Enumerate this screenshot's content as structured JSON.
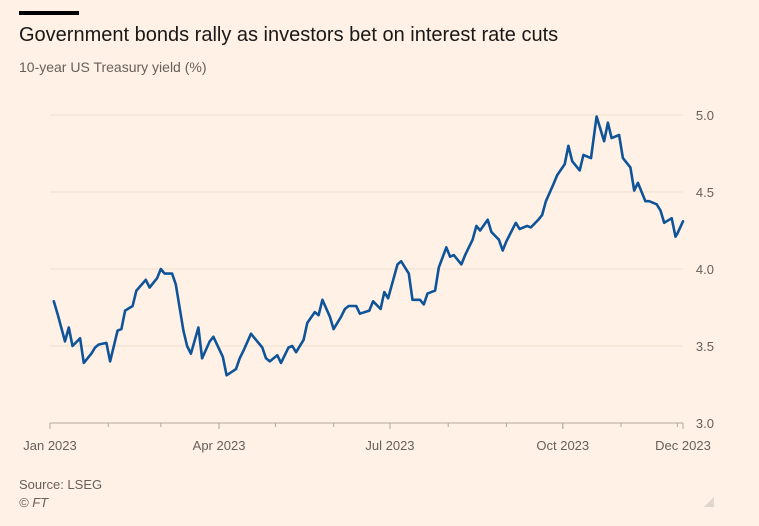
{
  "header": {
    "title": "Government bonds rally as investors bet on interest rate cuts",
    "subtitle": "10-year US Treasury yield (%)"
  },
  "footer": {
    "source": "Source: LSEG",
    "credit": "© FT"
  },
  "colors": {
    "background": "#FFF1E5",
    "line": "#0F5499",
    "gridline": "#F2DFCE",
    "text": "#66605C"
  },
  "icons": {
    "resize": "resize-handle-icon"
  },
  "chart_data": {
    "type": "line",
    "title": "Government bonds rally as investors bet on interest rate cuts",
    "subtitle": "10-year US Treasury yield (%)",
    "xlabel": "",
    "ylabel": "",
    "y_axis_position": "right",
    "grid": true,
    "ylim": [
      3.0,
      5.0
    ],
    "y_ticks": [
      3.0,
      3.5,
      4.0,
      4.5,
      5.0
    ],
    "y_tick_labels": [
      "3.0",
      "3.5",
      "4.0",
      "4.5",
      "5.0"
    ],
    "xlim": [
      "2023-01-01",
      "2023-12-04"
    ],
    "x_ticks": [
      {
        "date": "2023-01-01",
        "label": "Jan 2023"
      },
      {
        "date": "2023-04-01",
        "label": "Apr 2023"
      },
      {
        "date": "2023-07-01",
        "label": "Jul 2023"
      },
      {
        "date": "2023-10-01",
        "label": "Oct 2023"
      },
      {
        "date": "2023-12-04",
        "label": "Dec 2023"
      }
    ],
    "series": [
      {
        "color": "#0F5499",
        "x": [
          "2023-01-03",
          "2023-01-05",
          "2023-01-09",
          "2023-01-11",
          "2023-01-13",
          "2023-01-17",
          "2023-01-19",
          "2023-01-23",
          "2023-01-25",
          "2023-01-27",
          "2023-01-31",
          "2023-02-02",
          "2023-02-06",
          "2023-02-08",
          "2023-02-10",
          "2023-02-14",
          "2023-02-16",
          "2023-02-21",
          "2023-02-23",
          "2023-02-27",
          "2023-03-01",
          "2023-03-03",
          "2023-03-07",
          "2023-03-09",
          "2023-03-13",
          "2023-03-15",
          "2023-03-17",
          "2023-03-21",
          "2023-03-23",
          "2023-03-27",
          "2023-03-29",
          "2023-04-03",
          "2023-04-05",
          "2023-04-10",
          "2023-04-12",
          "2023-04-14",
          "2023-04-18",
          "2023-04-20",
          "2023-04-24",
          "2023-04-26",
          "2023-04-28",
          "2023-05-02",
          "2023-05-04",
          "2023-05-08",
          "2023-05-10",
          "2023-05-12",
          "2023-05-16",
          "2023-05-18",
          "2023-05-22",
          "2023-05-24",
          "2023-05-26",
          "2023-05-30",
          "2023-06-01",
          "2023-06-05",
          "2023-06-07",
          "2023-06-09",
          "2023-06-13",
          "2023-06-15",
          "2023-06-20",
          "2023-06-22",
          "2023-06-26",
          "2023-06-28",
          "2023-06-30",
          "2023-07-05",
          "2023-07-07",
          "2023-07-11",
          "2023-07-13",
          "2023-07-17",
          "2023-07-19",
          "2023-07-21",
          "2023-07-25",
          "2023-07-27",
          "2023-07-31",
          "2023-08-02",
          "2023-08-04",
          "2023-08-08",
          "2023-08-10",
          "2023-08-14",
          "2023-08-16",
          "2023-08-18",
          "2023-08-22",
          "2023-08-24",
          "2023-08-28",
          "2023-08-30",
          "2023-09-01",
          "2023-09-06",
          "2023-09-08",
          "2023-09-12",
          "2023-09-14",
          "2023-09-18",
          "2023-09-20",
          "2023-09-22",
          "2023-09-26",
          "2023-09-28",
          "2023-10-02",
          "2023-10-04",
          "2023-10-06",
          "2023-10-10",
          "2023-10-12",
          "2023-10-16",
          "2023-10-18",
          "2023-10-19",
          "2023-10-23",
          "2023-10-25",
          "2023-10-27",
          "2023-10-31",
          "2023-11-02",
          "2023-11-06",
          "2023-11-08",
          "2023-11-10",
          "2023-11-14",
          "2023-11-16",
          "2023-11-20",
          "2023-11-22",
          "2023-11-24",
          "2023-11-28",
          "2023-11-30",
          "2023-12-01",
          "2023-12-04"
        ],
        "y": [
          3.79,
          3.71,
          3.53,
          3.62,
          3.5,
          3.55,
          3.39,
          3.45,
          3.49,
          3.51,
          3.52,
          3.4,
          3.6,
          3.61,
          3.73,
          3.76,
          3.86,
          3.93,
          3.88,
          3.94,
          4.0,
          3.97,
          3.97,
          3.9,
          3.6,
          3.5,
          3.45,
          3.62,
          3.42,
          3.53,
          3.56,
          3.43,
          3.31,
          3.35,
          3.42,
          3.47,
          3.58,
          3.55,
          3.49,
          3.42,
          3.4,
          3.44,
          3.39,
          3.49,
          3.5,
          3.46,
          3.54,
          3.65,
          3.72,
          3.7,
          3.8,
          3.69,
          3.61,
          3.69,
          3.74,
          3.76,
          3.76,
          3.71,
          3.73,
          3.79,
          3.74,
          3.85,
          3.81,
          4.03,
          4.05,
          3.97,
          3.8,
          3.8,
          3.77,
          3.84,
          3.86,
          4.01,
          4.14,
          4.08,
          4.09,
          4.03,
          4.09,
          4.19,
          4.28,
          4.25,
          4.32,
          4.24,
          4.19,
          4.12,
          4.18,
          4.3,
          4.26,
          4.28,
          4.27,
          4.32,
          4.35,
          4.44,
          4.55,
          4.61,
          4.68,
          4.8,
          4.7,
          4.64,
          4.74,
          4.72,
          4.9,
          4.99,
          4.83,
          4.95,
          4.85,
          4.87,
          4.72,
          4.66,
          4.51,
          4.56,
          4.44,
          4.44,
          4.42,
          4.38,
          4.3,
          4.33,
          4.21,
          4.23,
          4.31
        ]
      }
    ]
  }
}
